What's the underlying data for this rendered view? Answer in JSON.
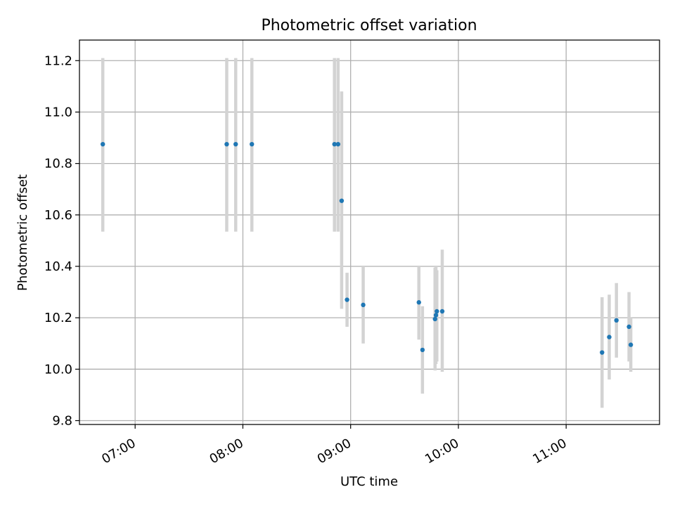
{
  "chart_data": {
    "type": "scatter",
    "title": "Photometric offset variation",
    "xlabel": "UTC time",
    "ylabel": "Photometric offset",
    "x_ticks": [
      "07:00",
      "08:00",
      "09:00",
      "10:00",
      "11:00"
    ],
    "y_ticks": [
      "9.8",
      "10.0",
      "10.2",
      "10.4",
      "10.6",
      "10.8",
      "11.0",
      "11.2"
    ],
    "xlim": [
      "06:29",
      "11:52"
    ],
    "ylim": [
      9.785,
      11.28
    ],
    "grid": true,
    "colors": {
      "points": "#1f77b4",
      "error_bars": "#d3d3d3",
      "grid": "#b0b0b0"
    },
    "points": [
      {
        "x": "06:42",
        "y": 10.875,
        "ylow": 10.535,
        "yhigh": 11.21
      },
      {
        "x": "07:51",
        "y": 10.875,
        "ylow": 10.535,
        "yhigh": 11.21
      },
      {
        "x": "07:56",
        "y": 10.875,
        "ylow": 10.535,
        "yhigh": 11.21
      },
      {
        "x": "08:05",
        "y": 10.875,
        "ylow": 10.535,
        "yhigh": 11.21
      },
      {
        "x": "08:51",
        "y": 10.875,
        "ylow": 10.535,
        "yhigh": 11.21
      },
      {
        "x": "08:53",
        "y": 10.875,
        "ylow": 10.535,
        "yhigh": 11.21
      },
      {
        "x": "08:55",
        "y": 10.655,
        "ylow": 10.235,
        "yhigh": 11.08
      },
      {
        "x": "08:58",
        "y": 10.27,
        "ylow": 10.165,
        "yhigh": 10.375
      },
      {
        "x": "09:07",
        "y": 10.25,
        "ylow": 10.1,
        "yhigh": 10.4
      },
      {
        "x": "09:38",
        "y": 10.26,
        "ylow": 10.115,
        "yhigh": 10.4
      },
      {
        "x": "09:40",
        "y": 10.075,
        "ylow": 9.905,
        "yhigh": 10.245
      },
      {
        "x": "09:47",
        "y": 10.195,
        "ylow": 9.995,
        "yhigh": 10.395
      },
      {
        "x": "09:47.5",
        "y": 10.21,
        "ylow": 10.02,
        "yhigh": 10.4
      },
      {
        "x": "09:48",
        "y": 10.225,
        "ylow": 10.03,
        "yhigh": 10.385
      },
      {
        "x": "09:51",
        "y": 10.225,
        "ylow": 9.99,
        "yhigh": 10.465
      },
      {
        "x": "11:20",
        "y": 10.065,
        "ylow": 9.85,
        "yhigh": 10.28
      },
      {
        "x": "11:24",
        "y": 10.125,
        "ylow": 9.96,
        "yhigh": 10.29
      },
      {
        "x": "11:28",
        "y": 10.19,
        "ylow": 10.045,
        "yhigh": 10.335
      },
      {
        "x": "11:35",
        "y": 10.165,
        "ylow": 10.03,
        "yhigh": 10.3
      },
      {
        "x": "11:36",
        "y": 10.095,
        "ylow": 9.99,
        "yhigh": 10.2
      }
    ]
  }
}
